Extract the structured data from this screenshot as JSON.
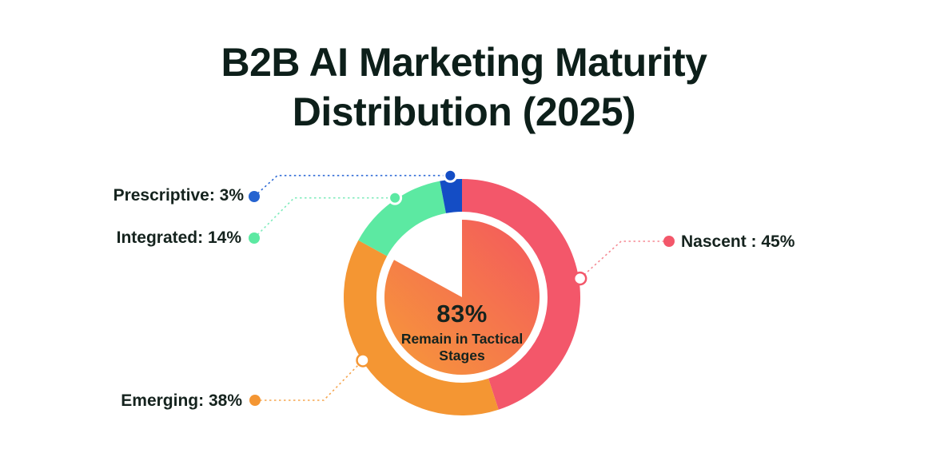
{
  "page": {
    "background": "#FFFFFF"
  },
  "title": {
    "full": "B2B AI Marketing Maturity Distribution (2025)",
    "lines": [
      "B2B AI Marketing Maturity",
      "Distribution (2025)"
    ],
    "color": "#0D1F1A"
  },
  "chart_data": {
    "type": "pie",
    "variant": "donut-with-inner-pie",
    "title": "B2B AI Marketing Maturity Distribution (2025)",
    "unit": "percent",
    "start_angle_deg": 0,
    "direction": "clockwise",
    "legend": "callout-labels-with-dotted-leader-lines",
    "label_color": "#15231E",
    "segments": [
      {
        "label": "Nascent",
        "value": 45,
        "display": "Nascent : 45%",
        "color": "#F3576A",
        "dot_color": "#F3576A",
        "leader_color": "#F58A94"
      },
      {
        "label": "Emerging",
        "value": 38,
        "display": "Emerging: 38%",
        "color": "#F49633",
        "dot_color": "#F49633",
        "leader_color": "#F6A54F"
      },
      {
        "label": "Integrated",
        "value": 14,
        "display": "Integrated: 14%",
        "color": "#5CE9A2",
        "dot_color": "#5CE9A2",
        "leader_color": "#7FEBBC"
      },
      {
        "label": "Prescriptive",
        "value": 3,
        "display": "Prescriptive: 3%",
        "color": "#144DC5",
        "dot_color": "#2563D0",
        "leader_color": "#2F6BD6"
      }
    ],
    "center_callout": {
      "headline": "83%",
      "subline": "Remain in Tactical Stages",
      "text_color": "#15231E",
      "gradient": [
        "#F69A38",
        "#F4575E"
      ]
    }
  }
}
